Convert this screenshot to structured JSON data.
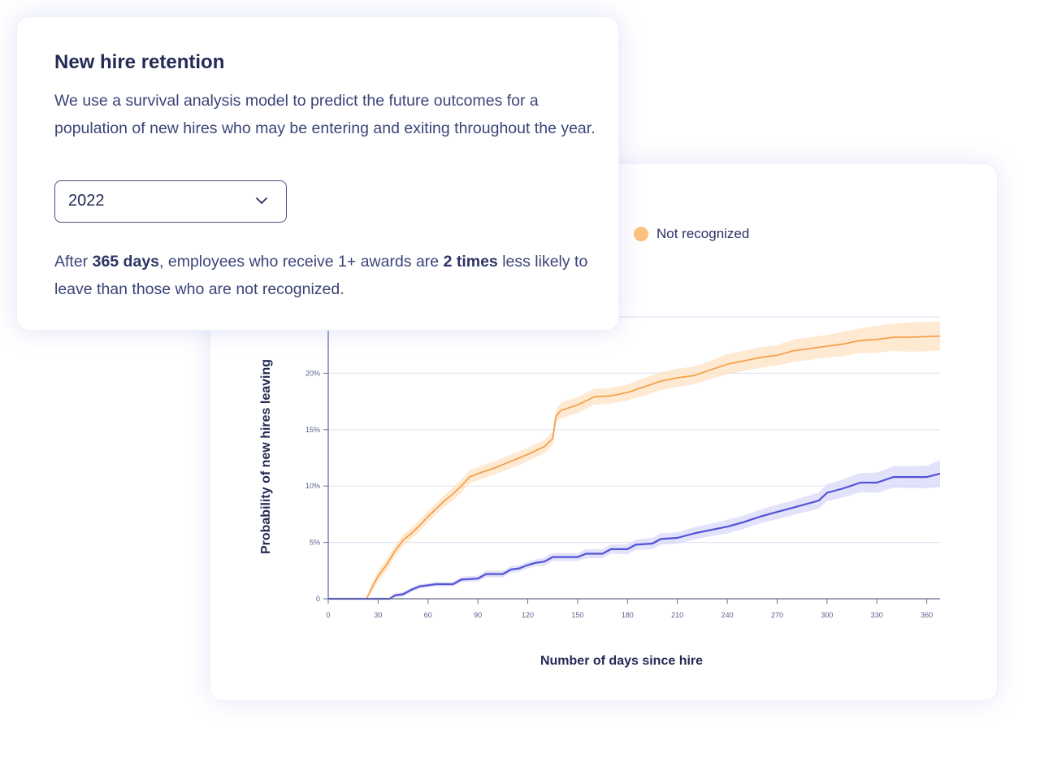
{
  "info_card": {
    "title": "New hire retention",
    "description": "We use a survival analysis model to predict the future outcomes for a population of new hires who may be entering and exiting throughout the year.",
    "year_select": {
      "value": "2022",
      "icon": "chevron-down-icon"
    },
    "summary": {
      "part1": "After ",
      "bold1": "365 days",
      "part2": ", employees who receive 1+ awards are ",
      "bold2": "2 times",
      "part3": " less likely to leave than those who are not recognized."
    }
  },
  "chart_data": {
    "type": "line",
    "xlabel": "Number of days since hire",
    "ylabel": "Probability of new hires leaving",
    "xlim": [
      0,
      368
    ],
    "ylim": [
      0,
      25
    ],
    "grid": true,
    "x_ticks": [
      0,
      30,
      60,
      90,
      120,
      150,
      180,
      210,
      240,
      270,
      300,
      330,
      360
    ],
    "x_tick_labels": [
      "0",
      "30",
      "60",
      "90",
      "120",
      "150",
      "180",
      "210",
      "240",
      "270",
      "300",
      "330",
      "360"
    ],
    "y_ticks": [
      0,
      5,
      10,
      15,
      20
    ],
    "y_tick_labels": [
      "0",
      "5%",
      "10%",
      "15%",
      "20%"
    ],
    "legend": {
      "placement": "top",
      "visible_entries": [
        "Not recognized"
      ]
    },
    "series": [
      {
        "name": "Not recognized",
        "color": "#f5a04a",
        "legend_color": "#fdc17e",
        "band_color": "#fde3c4",
        "x": [
          0,
          23,
          27,
          30,
          35,
          40,
          45,
          50,
          55,
          60,
          65,
          70,
          75,
          80,
          85,
          90,
          100,
          110,
          120,
          130,
          135,
          137,
          140,
          150,
          160,
          170,
          180,
          190,
          200,
          210,
          220,
          230,
          240,
          250,
          260,
          270,
          280,
          290,
          300,
          310,
          320,
          330,
          340,
          350,
          368
        ],
        "y": [
          0,
          0,
          1.2,
          2,
          3,
          4.2,
          5.2,
          5.8,
          6.5,
          7.3,
          8,
          8.7,
          9.3,
          10,
          10.8,
          11.1,
          11.6,
          12.2,
          12.8,
          13.5,
          14.2,
          16.2,
          16.7,
          17.2,
          17.9,
          18,
          18.3,
          18.8,
          19.3,
          19.6,
          19.8,
          20.3,
          20.8,
          21.1,
          21.4,
          21.6,
          22,
          22.2,
          22.4,
          22.6,
          22.9,
          23,
          23.2,
          23.2,
          23.3
        ],
        "ci_halfwidth": [
          0,
          0,
          0.4,
          0.5,
          0.5,
          0.5,
          0.5,
          0.5,
          0.5,
          0.5,
          0.5,
          0.5,
          0.6,
          0.6,
          0.6,
          0.6,
          0.6,
          0.6,
          0.6,
          0.6,
          0.6,
          0.6,
          0.7,
          0.7,
          0.7,
          0.7,
          0.7,
          0.8,
          0.8,
          0.8,
          0.8,
          0.8,
          0.9,
          0.9,
          0.9,
          0.9,
          1.0,
          1.0,
          1.0,
          1.1,
          1.1,
          1.2,
          1.2,
          1.3,
          1.3
        ]
      },
      {
        "color": "#5252d6",
        "band_color": "#d9d8fa",
        "x": [
          0,
          37,
          40,
          45,
          50,
          55,
          60,
          65,
          75,
          80,
          90,
          95,
          105,
          110,
          115,
          120,
          125,
          130,
          135,
          150,
          155,
          165,
          170,
          180,
          185,
          195,
          200,
          210,
          220,
          230,
          240,
          250,
          260,
          270,
          280,
          290,
          295,
          300,
          310,
          320,
          330,
          340,
          360,
          368
        ],
        "y": [
          0,
          0,
          0.3,
          0.4,
          0.8,
          1.1,
          1.2,
          1.3,
          1.3,
          1.7,
          1.8,
          2.2,
          2.2,
          2.6,
          2.7,
          3,
          3.2,
          3.3,
          3.7,
          3.7,
          4,
          4,
          4.4,
          4.4,
          4.8,
          4.9,
          5.3,
          5.4,
          5.8,
          6.1,
          6.4,
          6.8,
          7.3,
          7.7,
          8.1,
          8.5,
          8.7,
          9.4,
          9.8,
          10.3,
          10.3,
          10.8,
          10.8,
          11.1
        ],
        "ci_halfwidth": [
          0,
          0,
          0.2,
          0.2,
          0.2,
          0.2,
          0.2,
          0.2,
          0.2,
          0.25,
          0.25,
          0.3,
          0.3,
          0.3,
          0.3,
          0.3,
          0.3,
          0.35,
          0.35,
          0.35,
          0.4,
          0.4,
          0.4,
          0.45,
          0.45,
          0.5,
          0.5,
          0.5,
          0.55,
          0.55,
          0.6,
          0.6,
          0.6,
          0.65,
          0.65,
          0.7,
          0.7,
          0.75,
          0.8,
          0.85,
          0.9,
          0.95,
          1.0,
          1.2
        ]
      }
    ]
  }
}
